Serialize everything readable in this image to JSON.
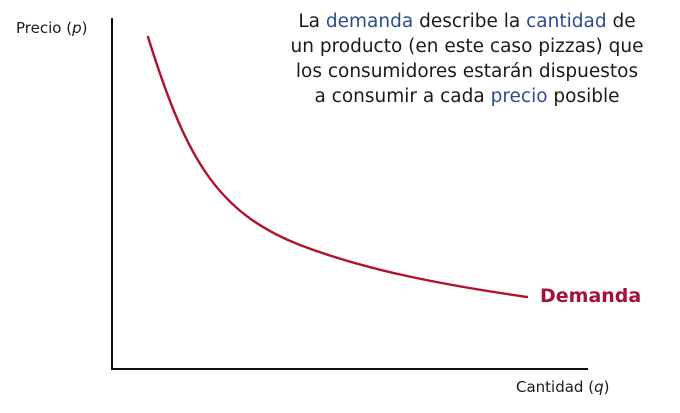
{
  "diagram": {
    "description": {
      "lines": [
        [
          {
            "text": "La ",
            "highlight": false
          },
          {
            "text": "demanda",
            "highlight": true
          },
          {
            "text": " describe la ",
            "highlight": false
          },
          {
            "text": "cantidad",
            "highlight": true
          },
          {
            "text": " de",
            "highlight": false
          }
        ],
        [
          {
            "text": "un producto (en este caso pizzas) que",
            "highlight": false
          }
        ],
        [
          {
            "text": "los consumidores estarán dispuestos",
            "highlight": false
          }
        ],
        [
          {
            "text": "a consumir a cada ",
            "highlight": false
          },
          {
            "text": "precio",
            "highlight": true
          },
          {
            "text": " posible",
            "highlight": false
          }
        ]
      ]
    },
    "y_axis": {
      "label": "Precio (",
      "variable": "p",
      "label_close": ")"
    },
    "x_axis": {
      "label": "Cantidad (",
      "variable": "q",
      "label_close": ")"
    },
    "curve": {
      "label": "Demanda"
    },
    "colors": {
      "curve": "#b0122c",
      "curve_label": "#a3123a",
      "highlight": "#2a4d8f",
      "axis": "#111111",
      "text": "#1a1a1a"
    }
  }
}
